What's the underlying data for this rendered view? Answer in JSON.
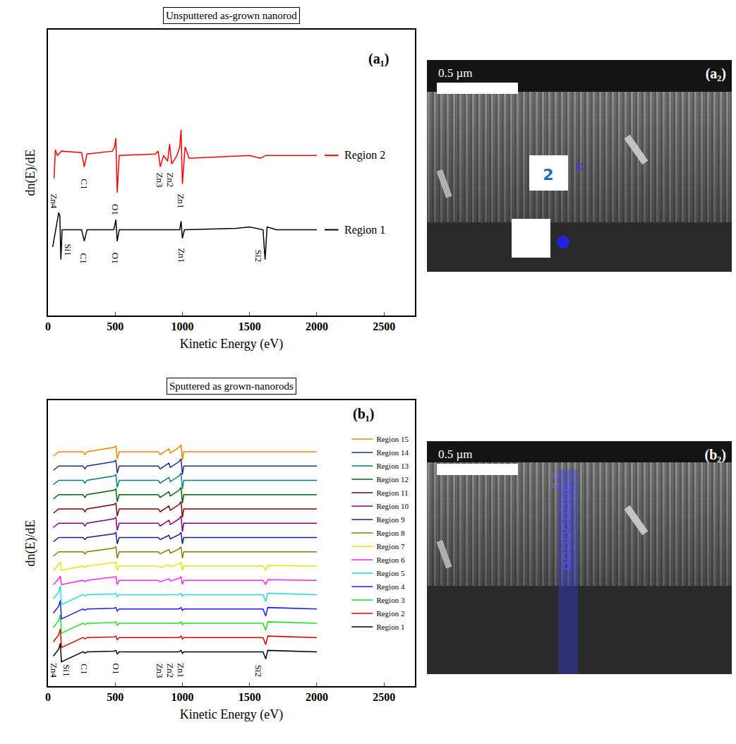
{
  "chart_data": [
    {
      "type": "line",
      "title": "Unsputtered as-grown nanorod",
      "panel_label": "(a₁)",
      "x_label": "Kinetic Energy (eV)",
      "y_label": "dn(E)/dE",
      "xlim": [
        0,
        2730
      ],
      "xticks": [
        0,
        500,
        1000,
        1500,
        2000,
        2500
      ],
      "ylim": [
        0,
        10
      ],
      "yticks": [],
      "tick_labels": "x",
      "grid": false,
      "series": [
        {
          "name": "Region 2",
          "color": "#ff0000",
          "x": [
            45,
            55,
            70,
            100,
            250,
            270,
            290,
            480,
            495,
            505,
            515,
            530,
            800,
            820,
            835,
            860,
            890,
            905,
            920,
            960,
            980,
            990,
            1000,
            1020,
            1050,
            1500,
            1580,
            1620,
            2000
          ],
          "values": [
            4.8,
            5.8,
            5.6,
            5.75,
            5.7,
            5.2,
            5.65,
            5.75,
            5.9,
            6.2,
            4.3,
            5.6,
            5.65,
            5.75,
            5.2,
            5.6,
            5.4,
            6.0,
            5.3,
            5.6,
            5.9,
            6.5,
            4.6,
            5.9,
            5.5,
            5.6,
            5.5,
            5.6,
            5.6
          ]
        },
        {
          "name": "Region 1",
          "color": "#000000",
          "x": [
            35,
            60,
            80,
            88,
            96,
            105,
            150,
            250,
            270,
            290,
            490,
            505,
            515,
            530,
            980,
            990,
            1000,
            1015,
            1400,
            1500,
            1600,
            1615,
            1630,
            1700,
            2000
          ],
          "values": [
            2.4,
            3.1,
            3.6,
            3.5,
            1.96,
            3.0,
            3.0,
            3.0,
            2.6,
            3.0,
            3.0,
            3.35,
            2.6,
            3.0,
            3.0,
            3.3,
            2.7,
            3.0,
            3.05,
            3.1,
            3.0,
            1.96,
            3.1,
            3.0,
            3.0
          ]
        }
      ],
      "annotations": [
        {
          "text": "Zn4",
          "x": 45,
          "y": 4.0
        },
        {
          "text": "C1",
          "x": 270,
          "y": 4.6
        },
        {
          "text": "O1",
          "x": 505,
          "y": 3.7
        },
        {
          "text": "Zn3",
          "x": 830,
          "y": 4.75
        },
        {
          "text": "Zn2",
          "x": 910,
          "y": 4.75
        },
        {
          "text": "Zn1",
          "x": 990,
          "y": 4.0
        },
        {
          "text": "Si1",
          "x": 150,
          "y": 2.3
        },
        {
          "text": "C1",
          "x": 270,
          "y": 2.0
        },
        {
          "text": "O1",
          "x": 505,
          "y": 2.0
        },
        {
          "text": "Zn1",
          "x": 990,
          "y": 2.1
        },
        {
          "text": "Si2",
          "x": 1565,
          "y": 2.1
        }
      ]
    },
    {
      "type": "line",
      "title": "Sputtered as grown-nanorods",
      "panel_label": "(b₁)",
      "x_label": "Kinetic Energy (eV)",
      "y_label": "dn(E)/dE",
      "xlim": [
        0,
        2730
      ],
      "xticks": [
        0,
        500,
        1000,
        1500,
        2000,
        2500
      ],
      "ylim": [
        0,
        20
      ],
      "yticks": [],
      "tick_labels": "x",
      "grid": false,
      "legend": "upper right",
      "x": [
        40,
        80,
        92,
        100,
        260,
        275,
        290,
        490,
        505,
        515,
        530,
        820,
        835,
        900,
        910,
        975,
        990,
        1000,
        1010,
        1600,
        1620,
        1635,
        2000
      ],
      "series": [
        {
          "name": "Region 1",
          "color": "#000000",
          "values": [
            2.1,
            2.6,
            3.0,
            1.7,
            2.4,
            2.3,
            2.4,
            2.45,
            2.5,
            2.25,
            2.4,
            2.4,
            2.4,
            2.4,
            2.4,
            2.4,
            2.5,
            2.3,
            2.4,
            2.4,
            1.9,
            2.5,
            2.4
          ]
        },
        {
          "name": "Region 2",
          "color": "#e00000",
          "values": [
            3.1,
            3.6,
            4.0,
            2.7,
            3.4,
            3.3,
            3.4,
            3.45,
            3.5,
            3.25,
            3.4,
            3.4,
            3.4,
            3.4,
            3.4,
            3.4,
            3.5,
            3.3,
            3.4,
            3.4,
            2.9,
            3.5,
            3.4
          ]
        },
        {
          "name": "Region 3",
          "color": "#22dd22",
          "values": [
            4.1,
            4.6,
            5.0,
            3.7,
            4.4,
            4.3,
            4.4,
            4.45,
            4.5,
            4.25,
            4.4,
            4.4,
            4.4,
            4.4,
            4.4,
            4.4,
            4.5,
            4.3,
            4.4,
            4.4,
            3.9,
            4.5,
            4.4
          ]
        },
        {
          "name": "Region 4",
          "color": "#1a1aff",
          "values": [
            5.1,
            5.6,
            6.0,
            4.7,
            5.4,
            5.3,
            5.4,
            5.45,
            5.5,
            5.25,
            5.4,
            5.4,
            5.4,
            5.4,
            5.4,
            5.4,
            5.5,
            5.3,
            5.4,
            5.4,
            4.9,
            5.5,
            5.4
          ]
        },
        {
          "name": "Region 5",
          "color": "#22dddd",
          "values": [
            6.1,
            6.6,
            7.0,
            5.7,
            6.4,
            6.3,
            6.4,
            6.45,
            6.5,
            6.25,
            6.4,
            6.4,
            6.4,
            6.4,
            6.4,
            6.4,
            6.5,
            6.3,
            6.4,
            6.4,
            5.9,
            6.5,
            6.4
          ]
        },
        {
          "name": "Region 6",
          "color": "#ff22ff",
          "values": [
            7.1,
            7.5,
            7.7,
            7.1,
            7.4,
            7.3,
            7.4,
            7.6,
            7.65,
            7.1,
            7.4,
            7.4,
            7.3,
            7.5,
            7.35,
            7.55,
            7.65,
            7.1,
            7.4,
            7.4,
            7.1,
            7.45,
            7.4
          ]
        },
        {
          "name": "Region 7",
          "color": "#e6e600",
          "values": [
            8.1,
            8.5,
            8.7,
            8.1,
            8.4,
            8.3,
            8.4,
            8.6,
            8.65,
            8.1,
            8.4,
            8.4,
            8.3,
            8.5,
            8.35,
            8.55,
            8.65,
            8.1,
            8.4,
            8.4,
            8.1,
            8.45,
            8.4
          ]
        },
        {
          "name": "Region 8",
          "color": "#808000",
          "values": [
            9.1,
            9.4,
            9.4,
            9.4,
            9.4,
            9.25,
            9.4,
            9.65,
            9.75,
            8.95,
            9.4,
            9.4,
            9.25,
            9.55,
            9.3,
            9.6,
            9.75,
            8.95,
            9.4,
            9.4,
            9.4,
            9.4,
            9.4
          ]
        },
        {
          "name": "Region 9",
          "color": "#1a1a99",
          "values": [
            10.1,
            10.4,
            10.4,
            10.4,
            10.4,
            10.25,
            10.4,
            10.65,
            10.75,
            9.95,
            10.4,
            10.4,
            10.25,
            10.55,
            10.3,
            10.6,
            10.75,
            9.95,
            10.4,
            10.4,
            10.4,
            10.4,
            10.4
          ]
        },
        {
          "name": "Region 10",
          "color": "#800080",
          "values": [
            11.1,
            11.4,
            11.4,
            11.4,
            11.4,
            11.2,
            11.4,
            11.7,
            11.8,
            10.9,
            11.4,
            11.4,
            11.2,
            11.6,
            11.3,
            11.7,
            11.9,
            10.8,
            11.4,
            11.4,
            11.4,
            11.4,
            11.4
          ]
        },
        {
          "name": "Region 11",
          "color": "#800000",
          "values": [
            12.1,
            12.4,
            12.4,
            12.4,
            12.4,
            12.2,
            12.4,
            12.7,
            12.8,
            11.9,
            12.4,
            12.4,
            12.2,
            12.6,
            12.3,
            12.7,
            12.9,
            11.8,
            12.4,
            12.4,
            12.4,
            12.4,
            12.4
          ]
        },
        {
          "name": "Region 12",
          "color": "#006400",
          "values": [
            13.1,
            13.4,
            13.4,
            13.4,
            13.4,
            13.2,
            13.4,
            13.7,
            13.8,
            12.9,
            13.4,
            13.4,
            13.2,
            13.6,
            13.3,
            13.7,
            13.9,
            12.8,
            13.4,
            13.4,
            13.4,
            13.4,
            13.4
          ]
        },
        {
          "name": "Region 13",
          "color": "#008080",
          "values": [
            14.1,
            14.4,
            14.4,
            14.4,
            14.4,
            14.2,
            14.4,
            14.7,
            14.8,
            13.9,
            14.4,
            14.4,
            14.2,
            14.6,
            14.3,
            14.7,
            14.9,
            13.8,
            14.4,
            14.4,
            14.4,
            14.4,
            14.4
          ]
        },
        {
          "name": "Region 14",
          "color": "#1c2e8c",
          "values": [
            15.1,
            15.4,
            15.4,
            15.4,
            15.4,
            15.2,
            15.4,
            15.7,
            15.8,
            14.9,
            15.4,
            15.4,
            15.2,
            15.6,
            15.3,
            15.7,
            15.9,
            14.8,
            15.4,
            15.4,
            15.4,
            15.4,
            15.4
          ]
        },
        {
          "name": "Region 15",
          "color": "#ff8000",
          "values": [
            16.1,
            16.4,
            16.4,
            16.4,
            16.4,
            16.2,
            16.4,
            16.7,
            16.8,
            15.9,
            16.4,
            16.4,
            16.2,
            16.6,
            16.3,
            16.7,
            16.9,
            15.8,
            16.4,
            16.4,
            16.4,
            16.4,
            16.4
          ]
        }
      ],
      "annotations": [
        {
          "text": "Zn4",
          "x": 45,
          "y": 1.1
        },
        {
          "text": "Si1",
          "x": 140,
          "y": 1.1
        },
        {
          "text": "C1",
          "x": 270,
          "y": 1.2
        },
        {
          "text": "O1",
          "x": 505,
          "y": 1.2
        },
        {
          "text": "Zn3",
          "x": 830,
          "y": 1.1
        },
        {
          "text": "Zn2",
          "x": 910,
          "y": 1.1
        },
        {
          "text": "Zn1",
          "x": 990,
          "y": 1.1
        },
        {
          "text": "Si2",
          "x": 1565,
          "y": 1.1
        }
      ]
    }
  ],
  "images": [
    {
      "label": "(a₂)",
      "scale_bar": "0.5 µm",
      "region_labels": [
        "2"
      ]
    },
    {
      "label": "(b₂)",
      "scale_bar": "0.5 µm",
      "region_labels": [
        "15",
        "14"
      ]
    }
  ]
}
